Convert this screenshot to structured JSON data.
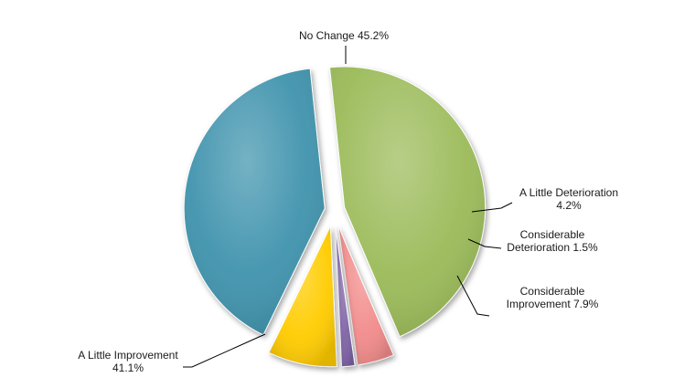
{
  "chart_data": {
    "type": "pie",
    "title": "",
    "slices": [
      {
        "label_lines": [
          "No Change 45.2%"
        ],
        "name": "No Change",
        "value": 45.2,
        "color": "#9bbb59"
      },
      {
        "label_lines": [
          "A Little Deterioration",
          "4.2%"
        ],
        "name": "A Little Deterioration",
        "value": 4.2,
        "color": "#f28b8b"
      },
      {
        "label_lines": [
          "Considerable",
          "Deterioration 1.5%"
        ],
        "name": "Considerable Deterioration",
        "value": 1.5,
        "color": "#7f63a6"
      },
      {
        "label_lines": [
          "Considerable",
          "Improvement 7.9%"
        ],
        "name": "Considerable Improvement",
        "value": 7.9,
        "color": "#ffcc00"
      },
      {
        "label_lines": [
          "A Little Improvement",
          "41.1%"
        ],
        "name": "A Little Improvement",
        "value": 41.1,
        "color": "#3f93ad"
      }
    ]
  }
}
